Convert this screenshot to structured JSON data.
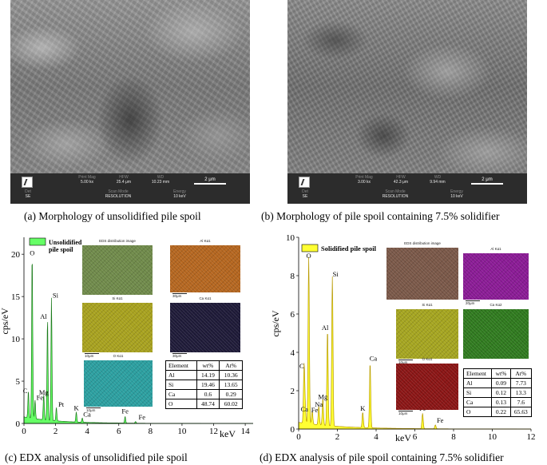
{
  "panels": {
    "a": {
      "caption": "(a) Morphology of unsolidified pile spoil",
      "info_top": [
        {
          "k": "Print Mag",
          "v": "5.00 kx"
        },
        {
          "k": "HFW",
          "v": "25.4 μm"
        },
        {
          "k": "WD",
          "v": "10.23 mm"
        }
      ],
      "info_bottom": [
        {
          "k": "Det",
          "v": "SE"
        },
        {
          "k": "Scan Mode",
          "v": "RESOLUTION"
        },
        {
          "k": "Energy",
          "v": "10 keV"
        }
      ],
      "scale": "2 μm"
    },
    "b": {
      "caption": "(b) Morphology of pile spoil containing 7.5% solidifier",
      "info_top": [
        {
          "k": "Print Mag",
          "v": "3.00 kx"
        },
        {
          "k": "HFW",
          "v": "42.3 μm"
        },
        {
          "k": "WD",
          "v": "9.94 mm"
        }
      ],
      "info_bottom": [
        {
          "k": "Det",
          "v": "SE"
        },
        {
          "k": "Scan Mode",
          "v": "RESOLUTION"
        },
        {
          "k": "Energy",
          "v": "10 keV"
        }
      ],
      "scale": "2 μm"
    },
    "c": {
      "caption": "(c) EDX analysis of unsolidified pile spoil",
      "maps": {
        "main": "EDS distribution image",
        "al": "Al Kα1",
        "si": "Si Kα1",
        "ca": "Ca Kα1",
        "o": "O Kα1",
        "scale": "30μm",
        "scale_small": "10μm"
      },
      "table": {
        "headers": [
          "Element",
          "wt%",
          "At%"
        ],
        "rows": [
          [
            "Al",
            "14.19",
            "10.36"
          ],
          [
            "Si",
            "19.46",
            "13.65"
          ],
          [
            "Ca",
            "0.6",
            "0.29"
          ],
          [
            "O",
            "48.74",
            "60.02"
          ]
        ]
      }
    },
    "d": {
      "caption": "(d) EDX analysis of pile spoil containing 7.5% solidifier",
      "maps": {
        "main": "EDS distribution image",
        "al": "Al Kα1",
        "si": "Si Kα1",
        "ca": "Ca Kα2",
        "o": "O Kα1",
        "scale": "20μm",
        "scale_small": "10μm"
      },
      "table": {
        "headers": [
          "Element",
          "wt%",
          "At%"
        ],
        "rows": [
          [
            "Al",
            "0.09",
            "7.73"
          ],
          [
            "Si",
            "0.12",
            "13.3"
          ],
          [
            "Ca",
            "0.13",
            "7.6"
          ],
          [
            "O",
            "0.22",
            "65.63"
          ]
        ]
      }
    }
  },
  "chart_data": [
    {
      "type": "area",
      "xlabel": "keV",
      "ylabel": "cps/eV",
      "xlim": [
        0,
        14.5
      ],
      "ylim": [
        0,
        22
      ],
      "xticks": [
        0,
        2,
        4,
        6,
        8,
        10,
        12,
        14
      ],
      "yticks": [
        0,
        5,
        10,
        15,
        20
      ],
      "legend": "Unsolidified pile spoil",
      "color": "#66ff66",
      "peaks": [
        {
          "label": "O",
          "x": 0.52,
          "y": 19.5
        },
        {
          "label": "C",
          "x": 0.28,
          "y": 3.2
        },
        {
          "label": "Fe",
          "x": 0.7,
          "y": 2.2
        },
        {
          "label": "Mg",
          "x": 1.25,
          "y": 3.0
        },
        {
          "label": "Al",
          "x": 1.49,
          "y": 12.0
        },
        {
          "label": "Si",
          "x": 1.74,
          "y": 14.5
        },
        {
          "label": "Pt",
          "x": 2.05,
          "y": 1.6
        },
        {
          "label": "K",
          "x": 3.31,
          "y": 1.2
        },
        {
          "label": "Ca",
          "x": 3.69,
          "y": 0.5
        },
        {
          "label": "Fe",
          "x": 6.4,
          "y": 0.8
        },
        {
          "label": "Fe",
          "x": 7.06,
          "y": 0.2
        }
      ]
    },
    {
      "type": "area",
      "xlabel": "keV",
      "ylabel": "cps/eV",
      "xlim": [
        0,
        12
      ],
      "ylim": [
        0,
        10
      ],
      "xticks": [
        0,
        2,
        4,
        6,
        8,
        10,
        12
      ],
      "yticks": [
        0,
        2,
        4,
        6,
        8,
        10
      ],
      "legend": "Solidified pile spoil",
      "color": "#ffff33",
      "peaks": [
        {
          "label": "C",
          "x": 0.28,
          "y": 3.0
        },
        {
          "label": "Ca",
          "x": 0.34,
          "y": 0.8
        },
        {
          "label": "O",
          "x": 0.52,
          "y": 8.7
        },
        {
          "label": "Fe",
          "x": 0.7,
          "y": 0.7
        },
        {
          "label": "Na",
          "x": 1.04,
          "y": 1.0
        },
        {
          "label": "Mg",
          "x": 1.25,
          "y": 1.4
        },
        {
          "label": "Al",
          "x": 1.49,
          "y": 5.0
        },
        {
          "label": "Si",
          "x": 1.74,
          "y": 7.8
        },
        {
          "label": "K",
          "x": 3.31,
          "y": 0.8
        },
        {
          "label": "Ca",
          "x": 3.69,
          "y": 3.4
        },
        {
          "label": "Fe",
          "x": 6.4,
          "y": 0.8
        },
        {
          "label": "Fe",
          "x": 7.06,
          "y": 0.2
        }
      ]
    }
  ]
}
